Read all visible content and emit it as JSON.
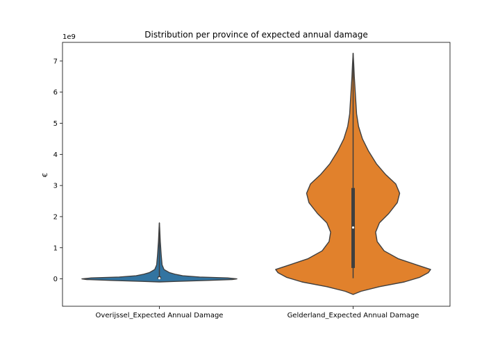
{
  "chart_data": {
    "type": "violin",
    "title": "Distribution per province of expected annual damage",
    "ylabel": "€",
    "y_offset_text": "1e9",
    "ylim": [
      -0.88,
      7.6
    ],
    "yticks": [
      0,
      1,
      2,
      3,
      4,
      5,
      6,
      7
    ],
    "grid": false,
    "categories": [
      "Overijssel_Expected Annual Damage",
      "Gelderland_Expected Annual Damage"
    ],
    "series": [
      {
        "name": "Overijssel_Expected Annual Damage",
        "color": "#3274a1",
        "min": 0.0,
        "q1": 0.0,
        "median": 0.02,
        "q3": 0.08,
        "max": 1.8,
        "kde_range": [
          -0.1,
          1.8
        ],
        "density_profile": [
          [
            -0.1,
            0.0
          ],
          [
            -0.08,
            0.22
          ],
          [
            -0.05,
            0.62
          ],
          [
            -0.02,
            0.94
          ],
          [
            0.0,
            1.0
          ],
          [
            0.03,
            0.88
          ],
          [
            0.06,
            0.52
          ],
          [
            0.1,
            0.3
          ],
          [
            0.15,
            0.2
          ],
          [
            0.2,
            0.13
          ],
          [
            0.3,
            0.06
          ],
          [
            0.45,
            0.035
          ],
          [
            0.6,
            0.03
          ],
          [
            0.75,
            0.024
          ],
          [
            0.9,
            0.02
          ],
          [
            1.05,
            0.016
          ],
          [
            1.2,
            0.012
          ],
          [
            1.35,
            0.009
          ],
          [
            1.5,
            0.006
          ],
          [
            1.65,
            0.004
          ],
          [
            1.8,
            0.0
          ]
        ]
      },
      {
        "name": "Gelderland_Expected Annual Damage",
        "color": "#e1812c",
        "min": 0.02,
        "q1": 0.35,
        "median": 1.65,
        "q3": 2.92,
        "max": 7.25,
        "kde_range": [
          -0.5,
          7.25
        ],
        "density_profile": [
          [
            -0.5,
            0.0
          ],
          [
            -0.4,
            0.1
          ],
          [
            -0.25,
            0.34
          ],
          [
            -0.1,
            0.66
          ],
          [
            0.05,
            0.86
          ],
          [
            0.2,
            0.97
          ],
          [
            0.3,
            1.0
          ],
          [
            0.45,
            0.82
          ],
          [
            0.65,
            0.58
          ],
          [
            0.9,
            0.4
          ],
          [
            1.2,
            0.31
          ],
          [
            1.5,
            0.29
          ],
          [
            1.8,
            0.34
          ],
          [
            2.1,
            0.46
          ],
          [
            2.45,
            0.57
          ],
          [
            2.75,
            0.6
          ],
          [
            3.05,
            0.55
          ],
          [
            3.35,
            0.42
          ],
          [
            3.7,
            0.3
          ],
          [
            4.1,
            0.2
          ],
          [
            4.5,
            0.12
          ],
          [
            4.9,
            0.07
          ],
          [
            5.3,
            0.045
          ],
          [
            5.7,
            0.035
          ],
          [
            6.1,
            0.025
          ],
          [
            6.5,
            0.015
          ],
          [
            6.9,
            0.008
          ],
          [
            7.25,
            0.0
          ]
        ]
      }
    ]
  }
}
